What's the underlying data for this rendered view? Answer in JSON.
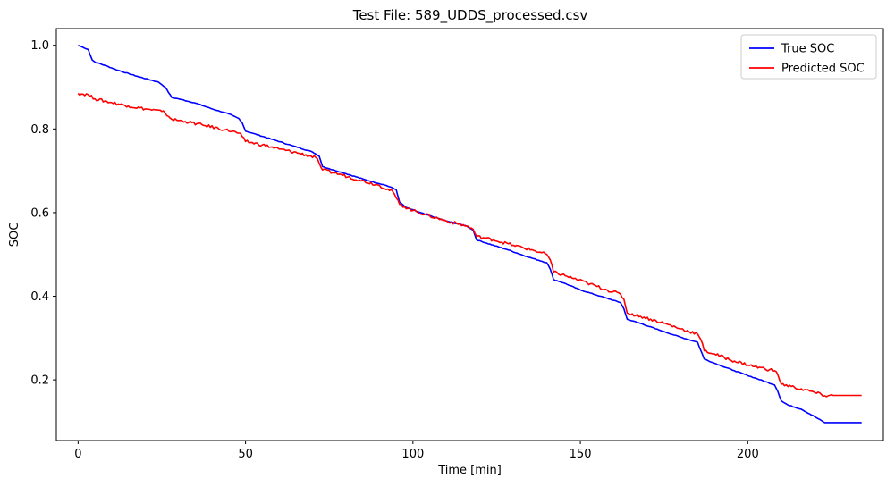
{
  "chart_data": {
    "type": "line",
    "title": "Test File: 589_UDDS_processed.csv",
    "xlabel": "Time [min]",
    "ylabel": "SOC",
    "xlim": [
      -6.5,
      240.5
    ],
    "ylim": [
      0.055,
      1.04
    ],
    "xticks": [
      0,
      50,
      100,
      150,
      200
    ],
    "xtick_labels": [
      "0",
      "50",
      "100",
      "150",
      "200"
    ],
    "yticks": [
      0.2,
      0.4,
      0.6,
      0.8,
      1.0
    ],
    "ytick_labels": [
      "0.2",
      "0.4",
      "0.6",
      "0.8",
      "1.0"
    ],
    "grid": false,
    "legend_position": "top-right",
    "series": [
      {
        "name": "True SOC",
        "color": "#0000ff",
        "points": [
          [
            0,
            1.0
          ],
          [
            1.5,
            0.995
          ],
          [
            3,
            0.99
          ],
          [
            4.2,
            0.965
          ],
          [
            5,
            0.96
          ],
          [
            8,
            0.952
          ],
          [
            12,
            0.94
          ],
          [
            18,
            0.925
          ],
          [
            24,
            0.912
          ],
          [
            26,
            0.9
          ],
          [
            28,
            0.875
          ],
          [
            30,
            0.872
          ],
          [
            35,
            0.862
          ],
          [
            40,
            0.848
          ],
          [
            45,
            0.836
          ],
          [
            48,
            0.825
          ],
          [
            49,
            0.815
          ],
          [
            50,
            0.795
          ],
          [
            52,
            0.79
          ],
          [
            58,
            0.775
          ],
          [
            64,
            0.76
          ],
          [
            70,
            0.745
          ],
          [
            72,
            0.735
          ],
          [
            73,
            0.71
          ],
          [
            75,
            0.705
          ],
          [
            80,
            0.693
          ],
          [
            86,
            0.678
          ],
          [
            92,
            0.665
          ],
          [
            95,
            0.655
          ],
          [
            96,
            0.625
          ],
          [
            98,
            0.612
          ],
          [
            104,
            0.595
          ],
          [
            110,
            0.58
          ],
          [
            116,
            0.568
          ],
          [
            118,
            0.558
          ],
          [
            119,
            0.535
          ],
          [
            122,
            0.527
          ],
          [
            128,
            0.512
          ],
          [
            134,
            0.495
          ],
          [
            140,
            0.48
          ],
          [
            141,
            0.465
          ],
          [
            142,
            0.44
          ],
          [
            145,
            0.432
          ],
          [
            150,
            0.415
          ],
          [
            156,
            0.4
          ],
          [
            162,
            0.385
          ],
          [
            163,
            0.37
          ],
          [
            164,
            0.345
          ],
          [
            168,
            0.335
          ],
          [
            174,
            0.318
          ],
          [
            180,
            0.302
          ],
          [
            185,
            0.29
          ],
          [
            186,
            0.27
          ],
          [
            187,
            0.25
          ],
          [
            190,
            0.24
          ],
          [
            196,
            0.222
          ],
          [
            202,
            0.205
          ],
          [
            208,
            0.188
          ],
          [
            209,
            0.172
          ],
          [
            210,
            0.15
          ],
          [
            212,
            0.14
          ],
          [
            216,
            0.13
          ],
          [
            220,
            0.112
          ],
          [
            223,
            0.098
          ],
          [
            234,
            0.098
          ]
        ]
      },
      {
        "name": "Predicted SOC",
        "color": "#ff0000",
        "points": [
          [
            0,
            0.885
          ],
          [
            3,
            0.882
          ],
          [
            5,
            0.872
          ],
          [
            10,
            0.863
          ],
          [
            15,
            0.855
          ],
          [
            20,
            0.848
          ],
          [
            25,
            0.842
          ],
          [
            26,
            0.838
          ],
          [
            28,
            0.823
          ],
          [
            32,
            0.818
          ],
          [
            38,
            0.808
          ],
          [
            44,
            0.798
          ],
          [
            48,
            0.79
          ],
          [
            49,
            0.782
          ],
          [
            50,
            0.77
          ],
          [
            55,
            0.762
          ],
          [
            60,
            0.752
          ],
          [
            66,
            0.742
          ],
          [
            71,
            0.732
          ],
          [
            72,
            0.718
          ],
          [
            73,
            0.702
          ],
          [
            78,
            0.692
          ],
          [
            84,
            0.678
          ],
          [
            90,
            0.665
          ],
          [
            94,
            0.65
          ],
          [
            96,
            0.62
          ],
          [
            100,
            0.605
          ],
          [
            105,
            0.592
          ],
          [
            110,
            0.58
          ],
          [
            116,
            0.568
          ],
          [
            118,
            0.56
          ],
          [
            119,
            0.543
          ],
          [
            124,
            0.535
          ],
          [
            130,
            0.522
          ],
          [
            136,
            0.51
          ],
          [
            140,
            0.5
          ],
          [
            141,
            0.487
          ],
          [
            142,
            0.458
          ],
          [
            146,
            0.448
          ],
          [
            152,
            0.432
          ],
          [
            158,
            0.415
          ],
          [
            162,
            0.405
          ],
          [
            163,
            0.393
          ],
          [
            164,
            0.36
          ],
          [
            168,
            0.352
          ],
          [
            174,
            0.338
          ],
          [
            180,
            0.322
          ],
          [
            185,
            0.31
          ],
          [
            186,
            0.296
          ],
          [
            187,
            0.27
          ],
          [
            190,
            0.262
          ],
          [
            196,
            0.245
          ],
          [
            202,
            0.232
          ],
          [
            208,
            0.222
          ],
          [
            209,
            0.212
          ],
          [
            210,
            0.19
          ],
          [
            214,
            0.182
          ],
          [
            220,
            0.17
          ],
          [
            223,
            0.162
          ],
          [
            226,
            0.163
          ],
          [
            234,
            0.163
          ]
        ]
      }
    ]
  }
}
